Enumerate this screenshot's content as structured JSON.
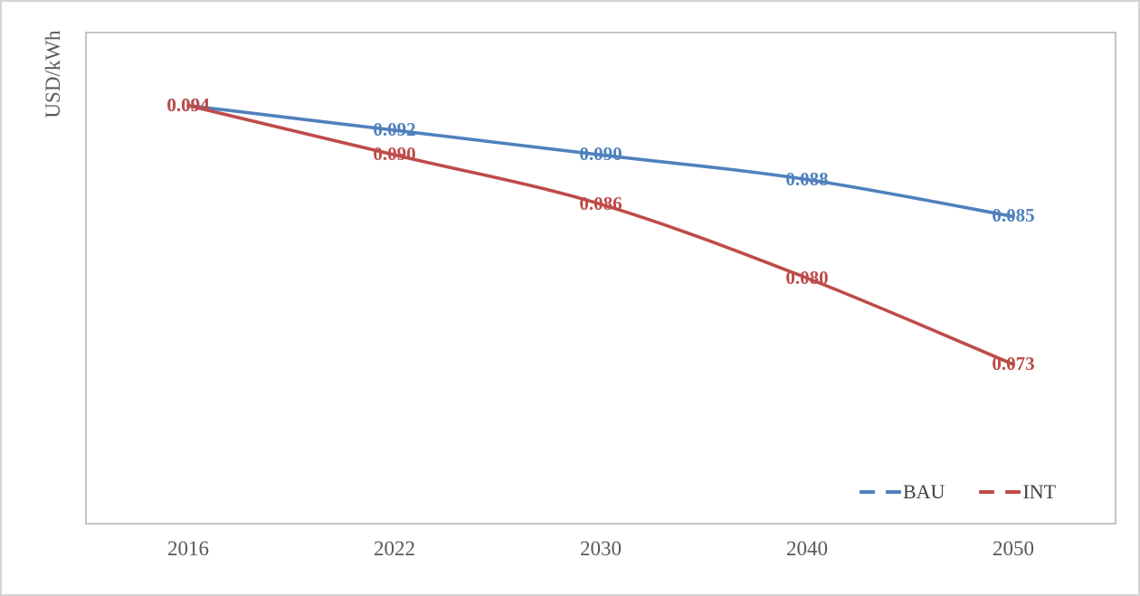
{
  "chart_data": {
    "type": "line",
    "title": "",
    "xlabel": "",
    "ylabel": "USD/kWh",
    "categories": [
      "2016",
      "2022",
      "2030",
      "2040",
      "2050"
    ],
    "series": [
      {
        "name": "BAU",
        "color": "#4F81BD",
        "values": [
          0.094,
          0.092,
          0.09,
          0.088,
          0.085
        ],
        "labels": [
          "0.094",
          "0.092",
          "0.090",
          "0.088",
          "0.085"
        ]
      },
      {
        "name": "INT",
        "color": "#BE4B48",
        "values": [
          0.094,
          0.09,
          0.086,
          0.08,
          0.073
        ],
        "labels": [
          "0.094",
          "0.090",
          "0.086",
          "0.080",
          "0.073"
        ]
      }
    ],
    "ylim": [
      0.06,
      0.1
    ],
    "grid": false,
    "line_style": "smooth",
    "data_label_position": "center",
    "legend": {
      "position": "inside-bottom-right",
      "entries": [
        "BAU",
        "INT"
      ]
    },
    "colors": {
      "axis_text": "#595959",
      "legend_text": "#3F3F3F",
      "plot_border": "#C3C3C3",
      "frame_border": "#D4D4D4"
    }
  }
}
